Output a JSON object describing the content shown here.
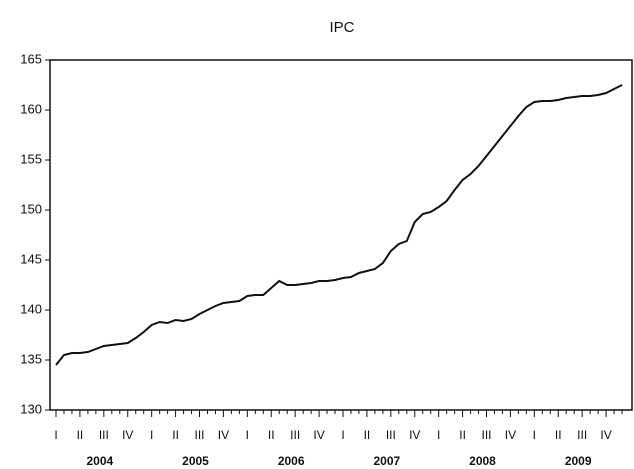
{
  "chart_data": {
    "type": "line",
    "title": "IPC",
    "categories": [
      "I",
      null,
      null,
      "II",
      null,
      null,
      "III",
      null,
      null,
      "IV",
      null,
      null,
      "I",
      null,
      null,
      "II",
      null,
      null,
      "III",
      null,
      null,
      "IV",
      null,
      null,
      "I",
      null,
      null,
      "II",
      null,
      null,
      "III",
      null,
      null,
      "IV",
      null,
      null,
      "I",
      null,
      null,
      "II",
      null,
      null,
      "III",
      null,
      null,
      "IV",
      null,
      null,
      "I",
      null,
      null,
      "II",
      null,
      null,
      "III",
      null,
      null,
      "IV",
      null,
      null,
      "I",
      null,
      null,
      "II",
      null,
      null,
      "III",
      null,
      null,
      "IV",
      null,
      null
    ],
    "x_groups": [
      "2004",
      "2005",
      "2006",
      "2007",
      "2008",
      "2009"
    ],
    "series": [
      {
        "color": "#111111",
        "values": [
          134.5,
          135.5,
          135.7,
          135.7,
          135.8,
          136.1,
          136.4,
          136.5,
          136.6,
          136.7,
          137.2,
          137.8,
          138.5,
          138.8,
          138.7,
          139.0,
          138.9,
          139.1,
          139.6,
          140.0,
          140.4,
          140.7,
          140.8,
          140.9,
          141.4,
          141.5,
          141.5,
          142.2,
          142.9,
          142.5,
          142.5,
          142.6,
          142.7,
          142.9,
          142.9,
          143.0,
          143.2,
          143.3,
          143.7,
          143.9,
          144.1,
          144.7,
          145.9,
          146.6,
          146.9,
          148.8,
          149.6,
          149.8,
          150.3,
          150.9,
          152.0,
          153.0,
          153.6,
          154.4,
          155.4,
          156.4,
          157.4,
          158.4,
          159.4,
          160.3,
          160.8,
          160.9,
          160.9,
          161.0,
          161.2,
          161.3,
          161.4,
          161.4,
          161.5,
          161.7,
          162.1,
          162.5
        ]
      }
    ],
    "ylim": [
      130,
      165
    ],
    "yticks": [
      130,
      135,
      140,
      145,
      150,
      155,
      160,
      165
    ]
  }
}
